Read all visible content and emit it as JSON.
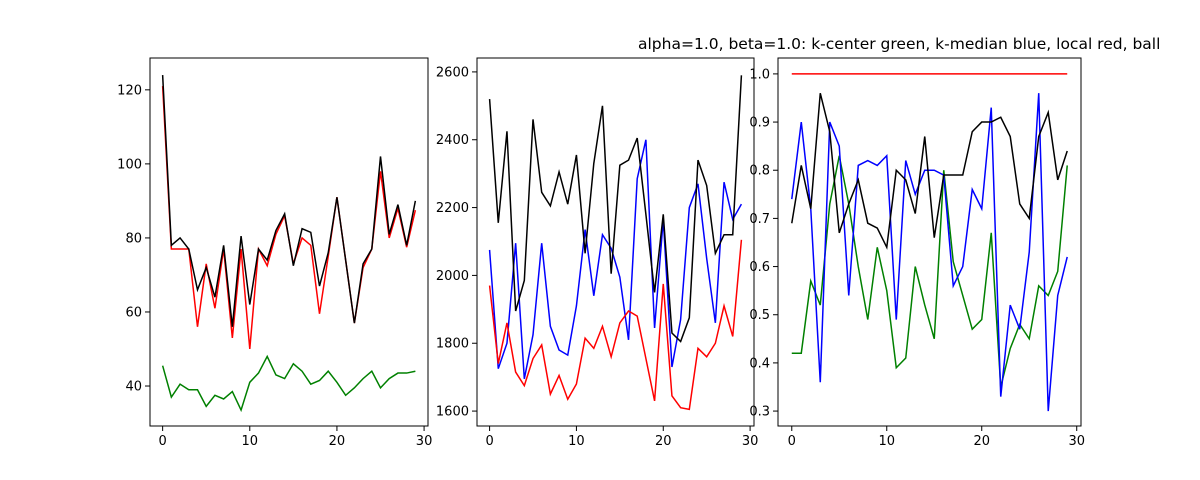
{
  "chart_data": [
    {
      "type": "line",
      "x": [
        0,
        1,
        2,
        3,
        4,
        5,
        6,
        7,
        8,
        9,
        10,
        11,
        12,
        13,
        14,
        15,
        16,
        17,
        18,
        19,
        20,
        21,
        22,
        23,
        24,
        25,
        26,
        27,
        28,
        29
      ],
      "xlim": [
        -1.45,
        30.45
      ],
      "xticks": [
        0,
        10,
        20,
        30
      ],
      "ylim": [
        29.2,
        128.6
      ],
      "yticks": [
        40,
        60,
        80,
        100,
        120
      ],
      "series": [
        {
          "color": "#008000",
          "values": [
            45.5,
            37,
            40.5,
            39,
            39,
            34.5,
            37.5,
            36.5,
            38.5,
            33.5,
            41,
            43.5,
            48,
            43,
            42,
            46,
            44,
            40.5,
            41.5,
            44,
            41,
            37.5,
            39.5,
            42,
            44,
            39.5,
            42,
            43.5,
            43.5,
            44
          ]
        },
        {
          "color": "#ff0000",
          "values": [
            121,
            77,
            77,
            77,
            56,
            73,
            61,
            77,
            53,
            77,
            50,
            77,
            72.5,
            81,
            86,
            73,
            80,
            78,
            59.5,
            75,
            91,
            74,
            57,
            72,
            77,
            98,
            80,
            88,
            77.5,
            87.5
          ]
        },
        {
          "color": "#000000",
          "values": [
            124,
            78,
            80,
            77,
            66,
            72,
            64,
            78,
            56,
            80.5,
            62,
            77,
            74,
            82,
            86.5,
            72.5,
            82.5,
            81.5,
            67,
            76,
            91,
            74,
            57,
            73,
            77,
            102,
            81,
            89,
            78,
            90
          ]
        }
      ]
    },
    {
      "type": "line",
      "x": [
        0,
        1,
        2,
        3,
        4,
        5,
        6,
        7,
        8,
        9,
        10,
        11,
        12,
        13,
        14,
        15,
        16,
        17,
        18,
        19,
        20,
        21,
        22,
        23,
        24,
        25,
        26,
        27,
        28,
        29
      ],
      "xlim": [
        -1.45,
        30.45
      ],
      "xticks": [
        0,
        10,
        20,
        30
      ],
      "ylim": [
        1556,
        2641
      ],
      "yticks": [
        1600,
        1800,
        2000,
        2200,
        2400,
        2600
      ],
      "series": [
        {
          "color": "#0000ff",
          "values": [
            2075,
            1725,
            1800,
            2095,
            1695,
            1825,
            2095,
            1850,
            1780,
            1765,
            1910,
            2135,
            1940,
            2120,
            2080,
            1995,
            1810,
            2285,
            2400,
            1845,
            2165,
            1730,
            1870,
            2200,
            2270,
            2050,
            1860,
            2275,
            2165,
            2210
          ]
        },
        {
          "color": "#ff0000",
          "values": [
            1970,
            1740,
            1860,
            1715,
            1675,
            1755,
            1795,
            1650,
            1705,
            1635,
            1680,
            1815,
            1785,
            1850,
            1760,
            1860,
            1895,
            1880,
            1755,
            1630,
            1975,
            1645,
            1610,
            1605,
            1785,
            1760,
            1800,
            1910,
            1820,
            2105
          ]
        },
        {
          "color": "#000000",
          "values": [
            2520,
            2155,
            2425,
            1895,
            1985,
            2460,
            2245,
            2205,
            2305,
            2210,
            2355,
            2065,
            2330,
            2500,
            2005,
            2325,
            2340,
            2405,
            2180,
            1950,
            2180,
            1830,
            1805,
            1875,
            2340,
            2265,
            2065,
            2120,
            2120,
            2590
          ]
        }
      ]
    },
    {
      "type": "line",
      "title": "alpha=1.0, beta=1.0: k-center green, k-median blue, local red, ball",
      "x": [
        0,
        1,
        2,
        3,
        4,
        5,
        6,
        7,
        8,
        9,
        10,
        11,
        12,
        13,
        14,
        15,
        16,
        17,
        18,
        19,
        20,
        21,
        22,
        23,
        24,
        25,
        26,
        27,
        28,
        29
      ],
      "xlim": [
        -1.45,
        30.45
      ],
      "xticks": [
        0,
        10,
        20,
        30
      ],
      "ylim": [
        0.269,
        1.033
      ],
      "yticks": [
        0.3,
        0.4,
        0.5,
        0.6,
        0.7,
        0.8,
        0.9,
        {
          "value": 1,
          "label": "1.0"
        }
      ],
      "series": [
        {
          "color": "#008000",
          "values": [
            0.42,
            0.42,
            0.57,
            0.52,
            0.73,
            0.83,
            0.73,
            0.6,
            0.49,
            0.64,
            0.55,
            0.39,
            0.41,
            0.6,
            0.52,
            0.45,
            0.8,
            0.61,
            0.54,
            0.47,
            0.49,
            0.67,
            0.35,
            0.43,
            0.48,
            0.45,
            0.56,
            0.54,
            0.59,
            0.81
          ]
        },
        {
          "color": "#0000ff",
          "values": [
            0.74,
            0.9,
            0.72,
            0.36,
            0.9,
            0.85,
            0.54,
            0.81,
            0.82,
            0.81,
            0.83,
            0.49,
            0.82,
            0.75,
            0.8,
            0.8,
            0.79,
            0.56,
            0.6,
            0.76,
            0.72,
            0.93,
            0.33,
            0.52,
            0.47,
            0.63,
            0.96,
            0.3,
            0.54,
            0.62
          ]
        },
        {
          "color": "#ff0000",
          "values": [
            1,
            1,
            1,
            1,
            1,
            1,
            1,
            1,
            1,
            1,
            1,
            1,
            1,
            1,
            1,
            1,
            1,
            1,
            1,
            1,
            1,
            1,
            1,
            1,
            1,
            1,
            1,
            1,
            1,
            1
          ]
        },
        {
          "color": "#000000",
          "values": [
            0.69,
            0.81,
            0.72,
            0.96,
            0.88,
            0.67,
            0.73,
            0.78,
            0.69,
            0.68,
            0.64,
            0.8,
            0.78,
            0.71,
            0.87,
            0.66,
            0.79,
            0.79,
            0.79,
            0.88,
            0.9,
            0.9,
            0.91,
            0.87,
            0.73,
            0.7,
            0.87,
            0.92,
            0.78,
            0.84
          ]
        }
      ]
    }
  ]
}
